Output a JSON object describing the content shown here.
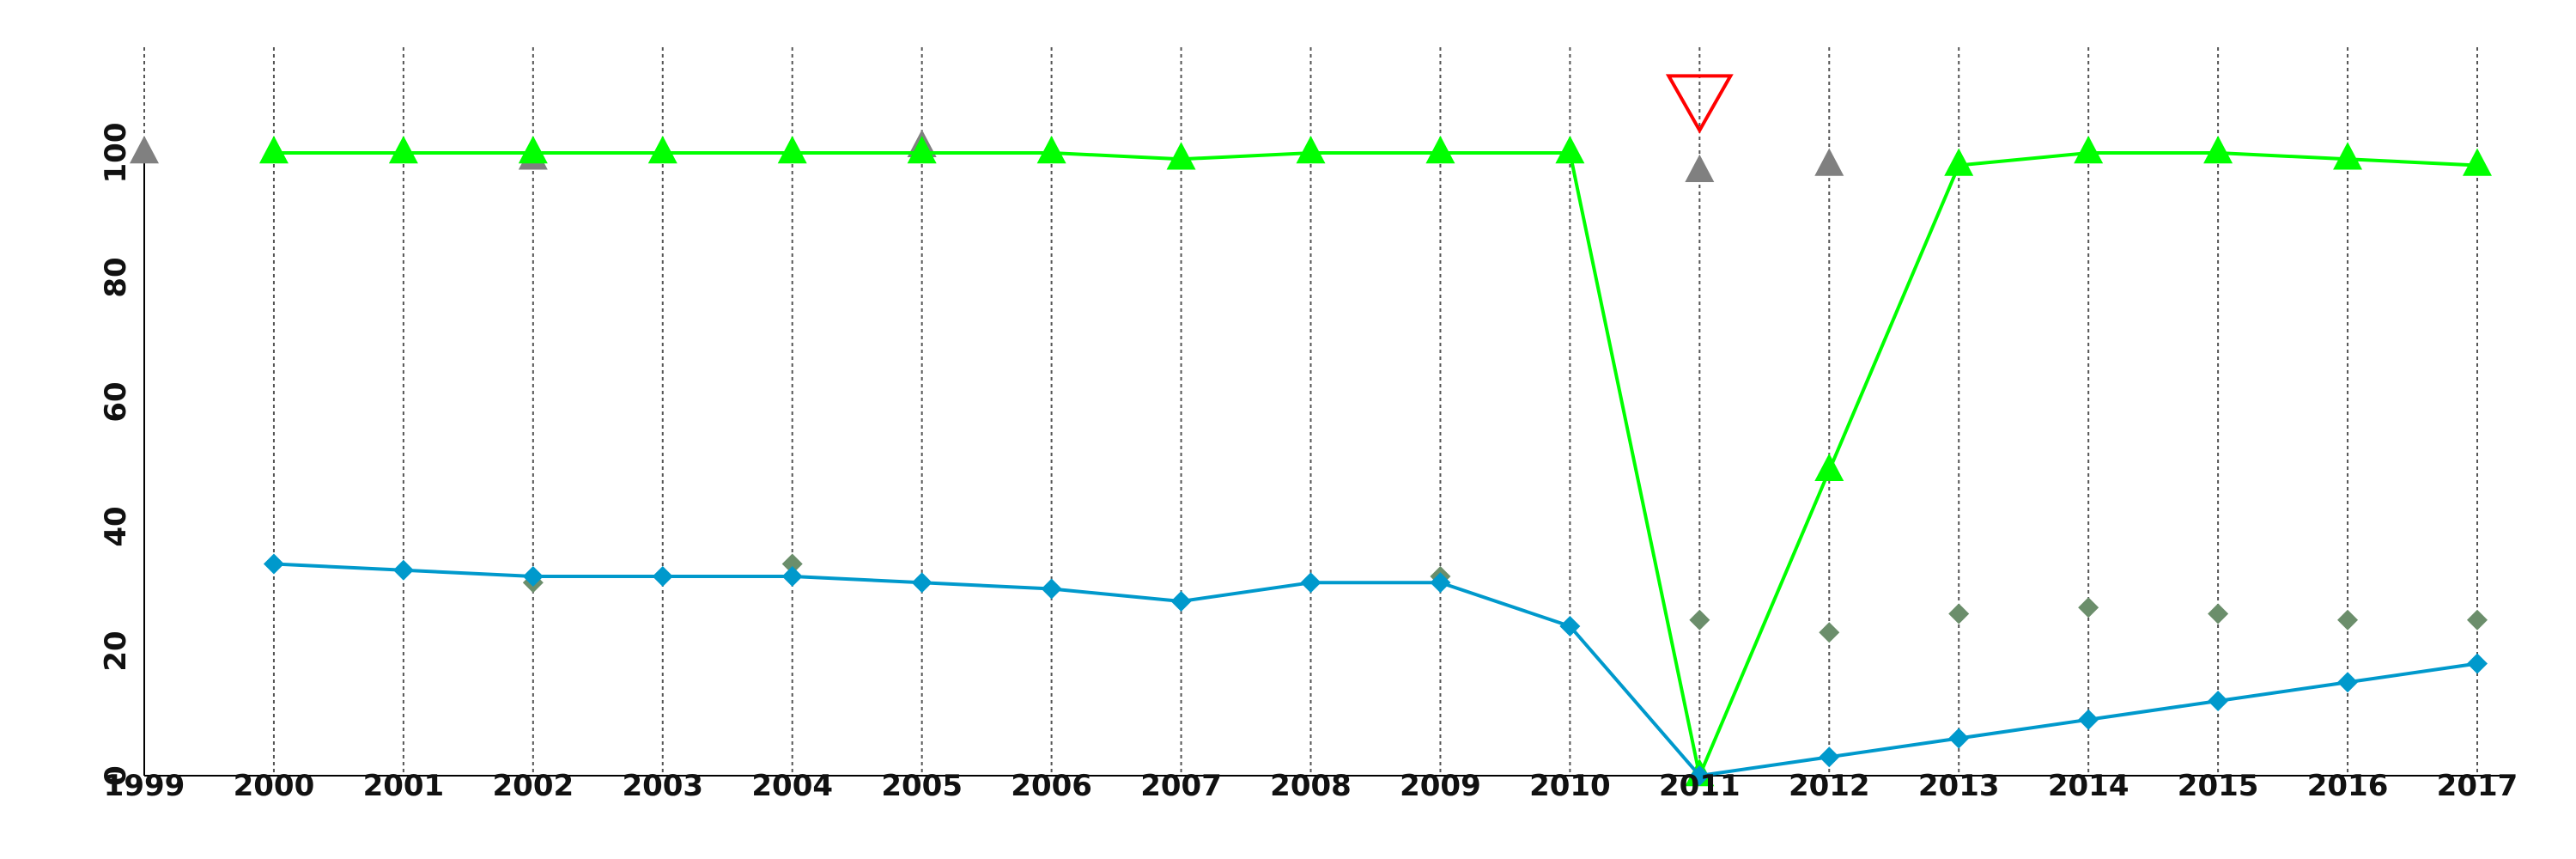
{
  "chart_data": {
    "type": "line",
    "title": "",
    "xlabel": "",
    "ylabel": "",
    "x": [
      1999,
      2000,
      2001,
      2002,
      2003,
      2004,
      2005,
      2006,
      2007,
      2008,
      2009,
      2010,
      2011,
      2012,
      2013,
      2014,
      2015,
      2016,
      2017
    ],
    "x_tick_labels": [
      "1999",
      "2000",
      "2001",
      "2002",
      "2003",
      "2004",
      "2005",
      "2006",
      "2007",
      "2008",
      "2009",
      "2010",
      "2011",
      "2012",
      "2013",
      "2014",
      "2015",
      "2016",
      "2017"
    ],
    "xlim": [
      1999,
      2017
    ],
    "ylim": [
      0,
      100
    ],
    "y_ticks": [
      0,
      20,
      40,
      60,
      80,
      100
    ],
    "y_tick_labels": [
      "0",
      "20",
      "40",
      "60",
      "80",
      "100"
    ],
    "grid": {
      "vertical": true,
      "horizontal": false,
      "style": "dotted"
    },
    "series": [
      {
        "mark": "line-triangle",
        "color": "#00ff00",
        "x": [
          2000,
          2001,
          2002,
          2003,
          2004,
          2005,
          2006,
          2007,
          2008,
          2009,
          2010,
          2011,
          2012,
          2013,
          2014,
          2015,
          2016,
          2017
        ],
        "values": [
          100,
          100,
          100,
          100,
          100,
          100,
          100,
          99,
          100,
          100,
          100,
          0,
          49,
          98,
          100,
          100,
          99,
          98
        ]
      },
      {
        "mark": "line-diamond",
        "color": "#0099cc",
        "x": [
          2000,
          2001,
          2002,
          2003,
          2004,
          2005,
          2006,
          2007,
          2008,
          2009,
          2010,
          2011,
          2012,
          2013,
          2014,
          2015,
          2016,
          2017
        ],
        "values": [
          34,
          33,
          32,
          32,
          32,
          31,
          30,
          28,
          31,
          31,
          24,
          0,
          3,
          6,
          9,
          12,
          15,
          18
        ]
      },
      {
        "mark": "triangle",
        "color": "#808080",
        "x": [
          1999,
          2002,
          2005,
          2011,
          2012
        ],
        "values": [
          100,
          99,
          101,
          97,
          98
        ]
      },
      {
        "mark": "diamond",
        "color": "#6b8e6b",
        "x": [
          2002,
          2004,
          2009,
          2011,
          2012,
          2013,
          2014,
          2015,
          2016,
          2017
        ],
        "values": [
          31,
          34,
          32,
          25,
          23,
          26,
          27,
          26,
          25,
          25
        ]
      }
    ],
    "annotations": [
      {
        "mark": "inverted-triangle-outline",
        "color": "#ff0000",
        "x": 2011,
        "value": 108
      }
    ]
  }
}
